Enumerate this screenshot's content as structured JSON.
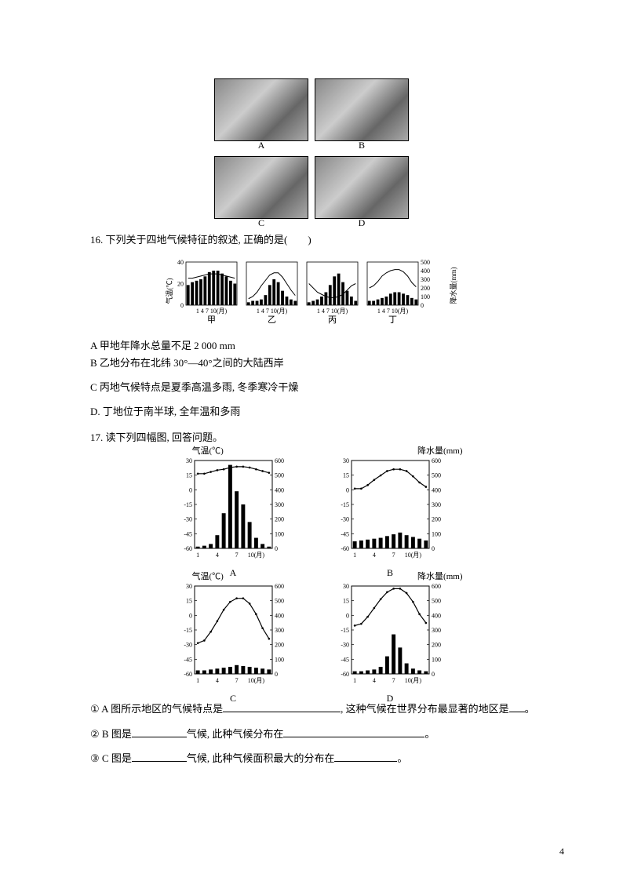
{
  "photos": {
    "labels": [
      "A",
      "B",
      "C",
      "D"
    ]
  },
  "q16": {
    "text": "16. 下列关于四地气候特征的叙述, 正确的是(　　)",
    "optA": "A 甲地年降水总量不足 2 000 mm",
    "optB": "B 乙地分布在北纬 30°—40°之间的大陆西岸",
    "optC": "C 丙地气候特点是夏季高温多雨, 冬季寒冷干燥",
    "optD": "D. 丁地位于南半球, 全年温和多雨"
  },
  "mini": {
    "left_axis_top": "40",
    "left_axis_vals": [
      "40",
      "20",
      "0"
    ],
    "left_label": "气温(℃)",
    "right_axis_vals": [
      "500",
      "400",
      "300",
      "200",
      "100",
      "0"
    ],
    "right_label": "降水量(mm)",
    "x_ticks": "1 4 7 10(月)",
    "labels": [
      "甲",
      "乙",
      "丙",
      "丁"
    ],
    "charts": [
      {
        "bars": [
          14,
          16,
          17,
          18,
          20,
          23,
          24,
          24,
          22,
          20,
          17,
          15
        ],
        "line": [
          25,
          25,
          26,
          27,
          28,
          29,
          29,
          29,
          28,
          27,
          26,
          25
        ]
      },
      {
        "bars": [
          2,
          3,
          3,
          4,
          7,
          14,
          18,
          16,
          10,
          6,
          4,
          3
        ],
        "line": [
          6,
          8,
          12,
          18,
          23,
          28,
          30,
          30,
          26,
          20,
          14,
          9
        ]
      },
      {
        "bars": [
          2,
          3,
          4,
          6,
          9,
          14,
          20,
          22,
          16,
          10,
          6,
          3
        ],
        "line": [
          20,
          16,
          12,
          10,
          8,
          7,
          7,
          8,
          10,
          14,
          18,
          20
        ]
      },
      {
        "bars": [
          3,
          3,
          4,
          5,
          6,
          8,
          9,
          9,
          8,
          7,
          5,
          4
        ],
        "line": [
          16,
          18,
          22,
          27,
          30,
          32,
          33,
          33,
          31,
          27,
          21,
          17
        ]
      }
    ],
    "colors": {
      "bar": "#000000",
      "line": "#000000",
      "bg": "#ffffff",
      "border": "#000000"
    }
  },
  "q17": {
    "title": "17. 读下列四幅图, 回答问题。",
    "sub1_pre": "① A 图所示地区的气候特点是",
    "sub1_mid": ", 这种气候在世界分布最显著的地区是",
    "sub1_end": "。",
    "sub2_pre": "② B 图是",
    "sub2_mid": "气候, 此种气候分布在",
    "sub2_end": "。",
    "sub3_pre": "③ C 图是",
    "sub3_mid": "气候, 此种气候面积最大的分布在",
    "sub3_end": "。"
  },
  "big": {
    "temp_label": "气温(℃)",
    "precip_label": "降水量(mm)",
    "y_left": [
      "30",
      "15",
      "0",
      "-15",
      "-30",
      "-45",
      "-60"
    ],
    "y_right": [
      "600",
      "500",
      "400",
      "300",
      "200",
      "100",
      "0"
    ],
    "x_ticks": [
      "1",
      "4",
      "7",
      "10(月)"
    ],
    "labels": [
      "A",
      "B",
      "C",
      "D"
    ],
    "charts": [
      {
        "bars": [
          2,
          3,
          5,
          15,
          40,
          95,
          65,
          50,
          30,
          12,
          5,
          2
        ],
        "line": [
          85,
          85,
          87,
          89,
          90,
          92,
          93,
          93,
          92,
          90,
          88,
          86
        ]
      },
      {
        "bars": [
          8,
          9,
          10,
          11,
          12,
          14,
          16,
          18,
          15,
          13,
          11,
          9
        ],
        "line": [
          68,
          68,
          72,
          78,
          83,
          88,
          90,
          90,
          88,
          82,
          75,
          70
        ]
      },
      {
        "bars": [
          4,
          4,
          5,
          6,
          7,
          8,
          10,
          9,
          8,
          7,
          6,
          5
        ],
        "line": [
          35,
          38,
          48,
          60,
          73,
          82,
          86,
          86,
          80,
          68,
          52,
          40
        ]
      },
      {
        "bars": [
          3,
          3,
          4,
          5,
          8,
          20,
          45,
          30,
          12,
          6,
          4,
          3
        ],
        "line": [
          55,
          57,
          65,
          75,
          85,
          93,
          97,
          97,
          92,
          82,
          68,
          58
        ]
      }
    ],
    "colors": {
      "bar": "#000000",
      "line": "#000000",
      "bg": "#ffffff",
      "grid": "#000000"
    }
  },
  "page_num": "4"
}
